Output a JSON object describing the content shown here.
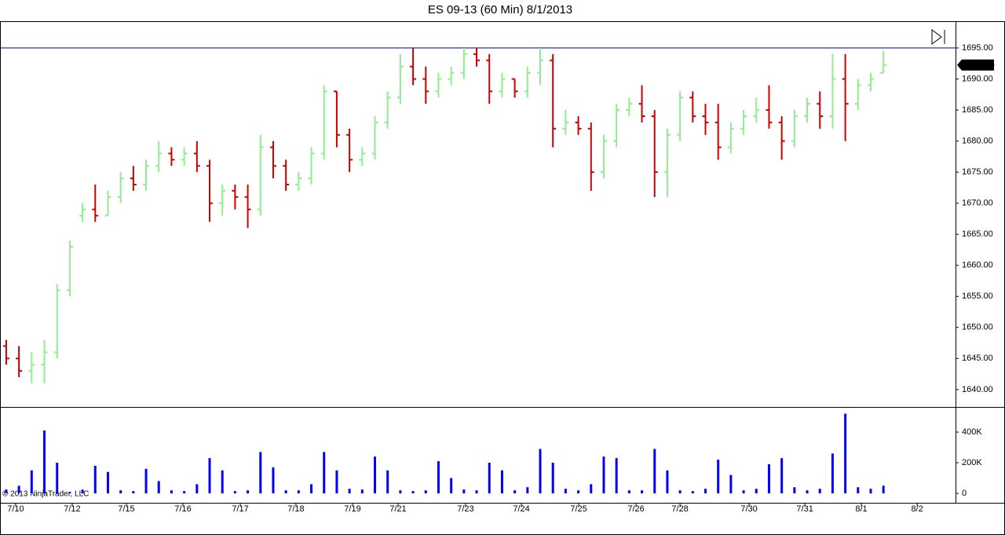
{
  "chart_data": [
    {
      "type": "ohlc",
      "title": "ES 09-13 (60 Min)  8/1/2013",
      "annotation": "© 2013 NinjaTrader, LLC",
      "up_color": "#90ee90",
      "down_color": "#cc0000",
      "reference_line": 1695,
      "reference_color": "#000080",
      "open": [
        1647,
        1645,
        1643,
        1644,
        1646,
        1656,
        1668,
        1669,
        1668,
        1671,
        1674,
        1673,
        1676,
        1678,
        1677,
        1678,
        1676,
        1670,
        1672,
        1671,
        1669,
        1679,
        1676,
        1673,
        1674,
        1678,
        1688,
        1681,
        1677,
        1678,
        1683,
        1687,
        1692,
        1690,
        1688,
        1690,
        1691,
        1694,
        1693,
        1688,
        1690,
        1688,
        1691,
        1693,
        1682,
        1683,
        1682,
        1675,
        1680,
        1685,
        1686,
        1684,
        1675,
        1681,
        1687,
        1684,
        1683,
        1679,
        1682,
        1684,
        1685,
        1683,
        1680,
        1684,
        1686,
        1684,
        1690,
        1686,
        1689,
        1691
      ],
      "high": [
        1648,
        1647,
        1646,
        1648,
        1657,
        1664,
        1670,
        1673,
        1672,
        1675,
        1676,
        1677,
        1680,
        1679,
        1679,
        1680,
        1677,
        1673,
        1673,
        1673,
        1681,
        1680,
        1677,
        1675,
        1679,
        1689,
        1688,
        1682,
        1679,
        1684,
        1688,
        1694,
        1695,
        1692,
        1691,
        1692,
        1695,
        1695,
        1694,
        1691,
        1690,
        1692,
        1695,
        1694,
        1685,
        1684,
        1683,
        1681,
        1686,
        1687,
        1689,
        1685,
        1682,
        1688,
        1688,
        1686,
        1686,
        1683,
        1685,
        1687,
        1689,
        1684,
        1685,
        1687,
        1688,
        1694,
        1694,
        1690,
        1691,
        1694.5
      ],
      "low": [
        1644,
        1642,
        1641,
        1641,
        1645,
        1655,
        1667,
        1667,
        1668,
        1670,
        1672,
        1672,
        1675,
        1676,
        1676,
        1675,
        1667,
        1668,
        1669,
        1666,
        1668,
        1674,
        1672,
        1672,
        1673,
        1677,
        1679,
        1675,
        1676,
        1677,
        1682,
        1686,
        1689,
        1686,
        1687,
        1689,
        1690,
        1692,
        1686,
        1687,
        1687,
        1687,
        1689,
        1679,
        1681,
        1681,
        1672,
        1674,
        1679,
        1684,
        1683,
        1671,
        1671,
        1680,
        1683,
        1681,
        1677,
        1678,
        1681,
        1683,
        1682,
        1677,
        1679,
        1683,
        1682,
        1682,
        1680,
        1685,
        1688,
        1691
      ],
      "close": [
        1645,
        1643,
        1644,
        1646,
        1656,
        1663,
        1669,
        1668,
        1671,
        1674,
        1673,
        1676,
        1678,
        1677,
        1678,
        1676,
        1670,
        1672,
        1671,
        1669,
        1679,
        1676,
        1673,
        1674,
        1678,
        1688,
        1681,
        1677,
        1678,
        1683,
        1687,
        1692,
        1690,
        1688,
        1690,
        1691,
        1694,
        1693,
        1688,
        1690,
        1688,
        1691,
        1693,
        1682,
        1683,
        1682,
        1675,
        1680,
        1685,
        1686,
        1684,
        1675,
        1681,
        1687,
        1684,
        1683,
        1679,
        1682,
        1684,
        1685,
        1683,
        1680,
        1684,
        1686,
        1684,
        1690,
        1686,
        1689,
        1690,
        1692.25
      ],
      "xlim": [
        -0.49,
        74.67
      ],
      "ylim": [
        1637.2,
        1699.3
      ],
      "yticks": [
        {
          "value": 1640,
          "label": "1640.00"
        },
        {
          "value": 1645,
          "label": "1645.00"
        },
        {
          "value": 1650,
          "label": "1650.00"
        },
        {
          "value": 1655,
          "label": "1655.00"
        },
        {
          "value": 1660,
          "label": "1660.00"
        },
        {
          "value": 1665,
          "label": "1665.00"
        },
        {
          "value": 1670,
          "label": "1670.00"
        },
        {
          "value": 1675,
          "label": "1675.00"
        },
        {
          "value": 1680,
          "label": "1680.00"
        },
        {
          "value": 1685,
          "label": "1685.00"
        },
        {
          "value": 1690,
          "label": "1690.00"
        },
        {
          "value": 1695,
          "label": "1695.00"
        }
      ]
    },
    {
      "type": "bar",
      "color": "#0000ff",
      "values": [
        25000,
        50000,
        150000,
        410000,
        200000,
        10000,
        25000,
        180000,
        140000,
        20000,
        15000,
        160000,
        80000,
        20000,
        15000,
        60000,
        230000,
        150000,
        15000,
        20000,
        270000,
        170000,
        20000,
        20000,
        60000,
        270000,
        150000,
        30000,
        25000,
        240000,
        150000,
        20000,
        15000,
        20000,
        210000,
        100000,
        25000,
        20000,
        200000,
        150000,
        20000,
        40000,
        290000,
        200000,
        30000,
        20000,
        60000,
        240000,
        230000,
        20000,
        20000,
        290000,
        150000,
        20000,
        15000,
        30000,
        220000,
        120000,
        20000,
        30000,
        190000,
        230000,
        40000,
        20000,
        30000,
        260000,
        520000,
        40000,
        30000,
        50000
      ],
      "xlim": [
        -0.49,
        74.67
      ],
      "ylim": [
        -46000,
        564000
      ],
      "yticks": [
        0,
        {
          "value": 200000,
          "label": "200K"
        },
        {
          "value": 400000,
          "label": "400K"
        }
      ],
      "xticks": [
        {
          "value": 0.74,
          "label": "7/10"
        },
        {
          "value": 5.19,
          "label": "7/12"
        },
        {
          "value": 9.45,
          "label": "7/15"
        },
        {
          "value": 13.9,
          "label": "7/16"
        },
        {
          "value": 18.41,
          "label": "7/17"
        },
        {
          "value": 22.79,
          "label": "7/18"
        },
        {
          "value": 27.24,
          "label": "7/19"
        },
        {
          "value": 30.82,
          "label": "7/21"
        },
        {
          "value": 36.13,
          "label": "7/23"
        },
        {
          "value": 40.52,
          "label": "7/24"
        },
        {
          "value": 45.03,
          "label": "7/25"
        },
        {
          "value": 49.54,
          "label": "7/26"
        },
        {
          "value": 53.0,
          "label": "7/28"
        },
        {
          "value": 58.43,
          "label": "7/30"
        },
        {
          "value": 62.82,
          "label": "7/31"
        },
        {
          "value": 67.26,
          "label": "8/1"
        },
        {
          "value": 71.65,
          "label": "8/2"
        }
      ]
    }
  ]
}
